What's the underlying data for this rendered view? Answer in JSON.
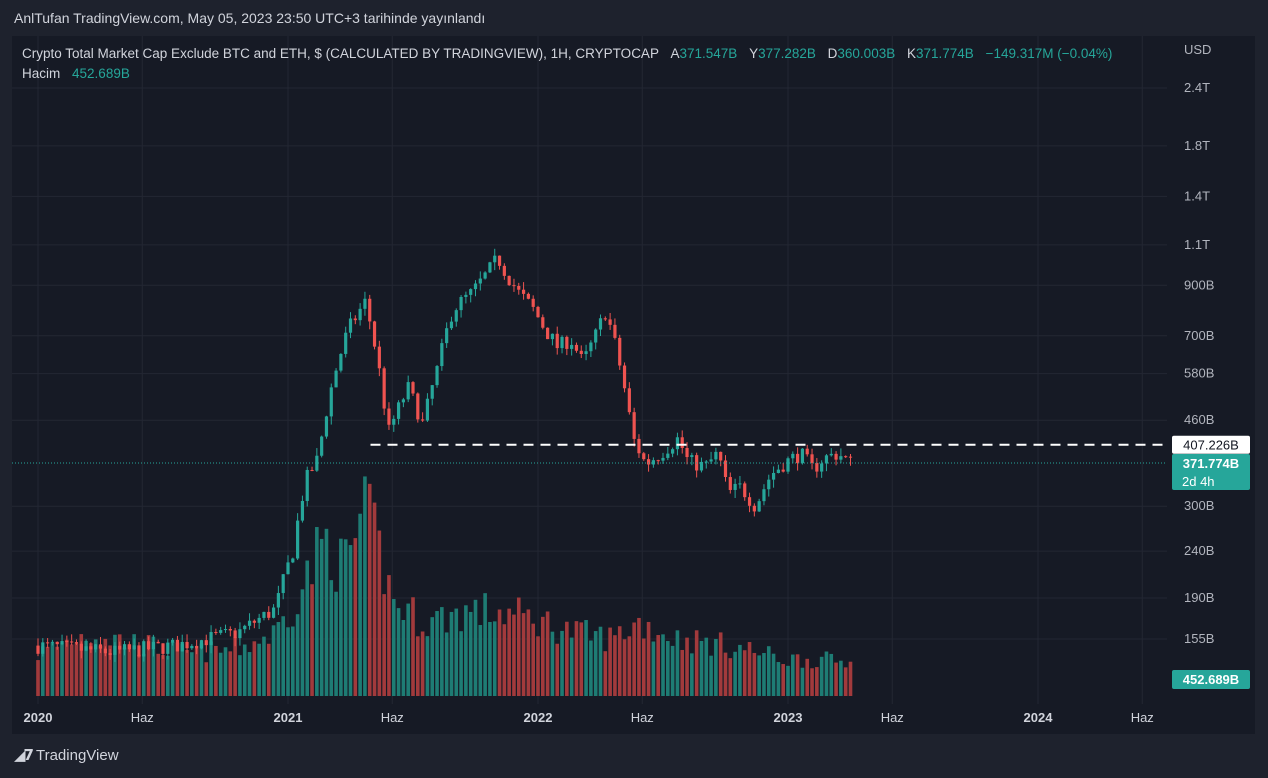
{
  "header": {
    "published_text": "AnlTufan TradingView.com, May 05, 2023 23:50 UTC+3 tarihinde yayınlandı"
  },
  "legend": {
    "title": "Crypto Total Market Cap Exclude BTC and ETH, $ (CALCULATED BY TRADINGVIEW), 1H, CRYPTOCAP",
    "o_label": "A",
    "o_value": "371.547B",
    "h_label": "Y",
    "h_value": "377.282B",
    "l_label": "D",
    "l_value": "360.003B",
    "c_label": "K",
    "c_value": "371.774B",
    "change": "−149.317M (−0.04%)",
    "volume_label": "Hacim",
    "volume_value": "452.689B"
  },
  "axis": {
    "currency": "USD"
  },
  "price_tags": {
    "resistance": "407.226B",
    "last_price": "371.774B",
    "countdown": "2d 4h",
    "volume": "452.689B"
  },
  "brand": {
    "name": "TradingView"
  },
  "colors": {
    "up": "#26a69a",
    "down": "#ef5350",
    "up_volume": "#1e7c74",
    "down_volume": "#a23a3c",
    "background": "#161a25",
    "grid": "#232733"
  },
  "chart_data": {
    "type": "candlestick",
    "symbol": "CRYPTOCAP",
    "y_scale": "log",
    "y_ticks": [
      {
        "label": "2.4T",
        "value": 2400
      },
      {
        "label": "1.8T",
        "value": 1800
      },
      {
        "label": "1.4T",
        "value": 1400
      },
      {
        "label": "1.1T",
        "value": 1100
      },
      {
        "label": "900B",
        "value": 900
      },
      {
        "label": "700B",
        "value": 700
      },
      {
        "label": "580B",
        "value": 580
      },
      {
        "label": "460B",
        "value": 460
      },
      {
        "label": "300B",
        "value": 300
      },
      {
        "label": "240B",
        "value": 240
      },
      {
        "label": "190B",
        "value": 190
      },
      {
        "label": "155B",
        "value": 155
      }
    ],
    "x_ticks": [
      {
        "label": "2020",
        "t": 0,
        "bold": true
      },
      {
        "label": "Haz",
        "t": 0.417,
        "bold": false
      },
      {
        "label": "2021",
        "t": 1,
        "bold": true
      },
      {
        "label": "Haz",
        "t": 1.417,
        "bold": false
      },
      {
        "label": "2022",
        "t": 2,
        "bold": true
      },
      {
        "label": "Haz",
        "t": 2.417,
        "bold": false
      },
      {
        "label": "2023",
        "t": 3,
        "bold": true
      },
      {
        "label": "Haz",
        "t": 3.417,
        "bold": false
      },
      {
        "label": "2024",
        "t": 4,
        "bold": true
      },
      {
        "label": "Haz",
        "t": 4.417,
        "bold": false
      }
    ],
    "resistance_level": 407.226,
    "last_price": 371.774,
    "close_path": [
      [
        0.0,
        150
      ],
      [
        0.3,
        145
      ],
      [
        0.55,
        150
      ],
      [
        0.8,
        160
      ],
      [
        0.95,
        180
      ],
      [
        1.02,
        240
      ],
      [
        1.07,
        340
      ],
      [
        1.12,
        380
      ],
      [
        1.18,
        560
      ],
      [
        1.24,
        720
      ],
      [
        1.31,
        830
      ],
      [
        1.36,
        610
      ],
      [
        1.4,
        430
      ],
      [
        1.48,
        540
      ],
      [
        1.54,
        450
      ],
      [
        1.6,
        600
      ],
      [
        1.66,
        800
      ],
      [
        1.74,
        870
      ],
      [
        1.8,
        960
      ],
      [
        1.84,
        1030
      ],
      [
        1.87,
        960
      ],
      [
        1.92,
        870
      ],
      [
        1.98,
        800
      ],
      [
        2.03,
        720
      ],
      [
        2.08,
        660
      ],
      [
        2.13,
        690
      ],
      [
        2.18,
        610
      ],
      [
        2.23,
        700
      ],
      [
        2.27,
        790
      ],
      [
        2.3,
        700
      ],
      [
        2.34,
        560
      ],
      [
        2.38,
        420
      ],
      [
        2.43,
        370
      ],
      [
        2.49,
        390
      ],
      [
        2.56,
        420
      ],
      [
        2.6,
        375
      ],
      [
        2.67,
        365
      ],
      [
        2.72,
        390
      ],
      [
        2.76,
        320
      ],
      [
        2.81,
        330
      ],
      [
        2.87,
        300
      ],
      [
        2.93,
        350
      ],
      [
        2.98,
        370
      ],
      [
        3.05,
        390
      ],
      [
        3.1,
        360
      ],
      [
        3.14,
        380
      ],
      [
        3.2,
        390
      ],
      [
        3.25,
        372
      ]
    ],
    "volume_path": [
      [
        0.0,
        40
      ],
      [
        0.2,
        60
      ],
      [
        0.4,
        50
      ],
      [
        0.6,
        40
      ],
      [
        0.8,
        45
      ],
      [
        0.95,
        60
      ],
      [
        1.05,
        100
      ],
      [
        1.15,
        150
      ],
      [
        1.22,
        120
      ],
      [
        1.3,
        170
      ],
      [
        1.34,
        160
      ],
      [
        1.42,
        90
      ],
      [
        1.55,
        70
      ],
      [
        1.7,
        80
      ],
      [
        1.85,
        80
      ],
      [
        2.0,
        72
      ],
      [
        2.15,
        60
      ],
      [
        2.3,
        55
      ],
      [
        2.4,
        70
      ],
      [
        2.55,
        55
      ],
      [
        2.7,
        50
      ],
      [
        2.83,
        45
      ],
      [
        2.98,
        35
      ],
      [
        3.1,
        35
      ],
      [
        3.25,
        32
      ]
    ]
  }
}
